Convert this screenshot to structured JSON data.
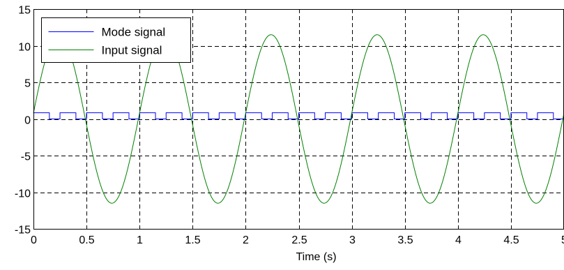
{
  "chart_data": {
    "type": "line",
    "xlabel": "Time (s)",
    "ylabel": "",
    "xlim": [
      0,
      5
    ],
    "ylim": [
      -15,
      15
    ],
    "xticks": [
      0,
      0.5,
      1,
      1.5,
      2,
      2.5,
      3,
      3.5,
      4,
      4.5,
      5
    ],
    "xtick_labels": [
      "0",
      "0.5",
      "1",
      "1.5",
      "2",
      "2.5",
      "3",
      "3.5",
      "4",
      "4.5",
      "5"
    ],
    "yticks": [
      -15,
      -10,
      -5,
      0,
      5,
      10,
      15
    ],
    "ytick_labels": [
      "-15",
      "-10",
      "-5",
      "0",
      "5",
      "10",
      "15"
    ],
    "grid": true,
    "legend_position": "top-left",
    "series": [
      {
        "name": "Mode signal",
        "color": "#0000ff",
        "kind": "square-wave",
        "period": 0.25,
        "duty": 0.6,
        "high": 0.85,
        "low": 0,
        "start": 0
      },
      {
        "name": "Input signal",
        "color": "#008000",
        "kind": "sinusoid",
        "amplitude": 11.5,
        "frequency_hz": 1,
        "phase_deg": 4,
        "sample_step": 0.004
      }
    ]
  }
}
